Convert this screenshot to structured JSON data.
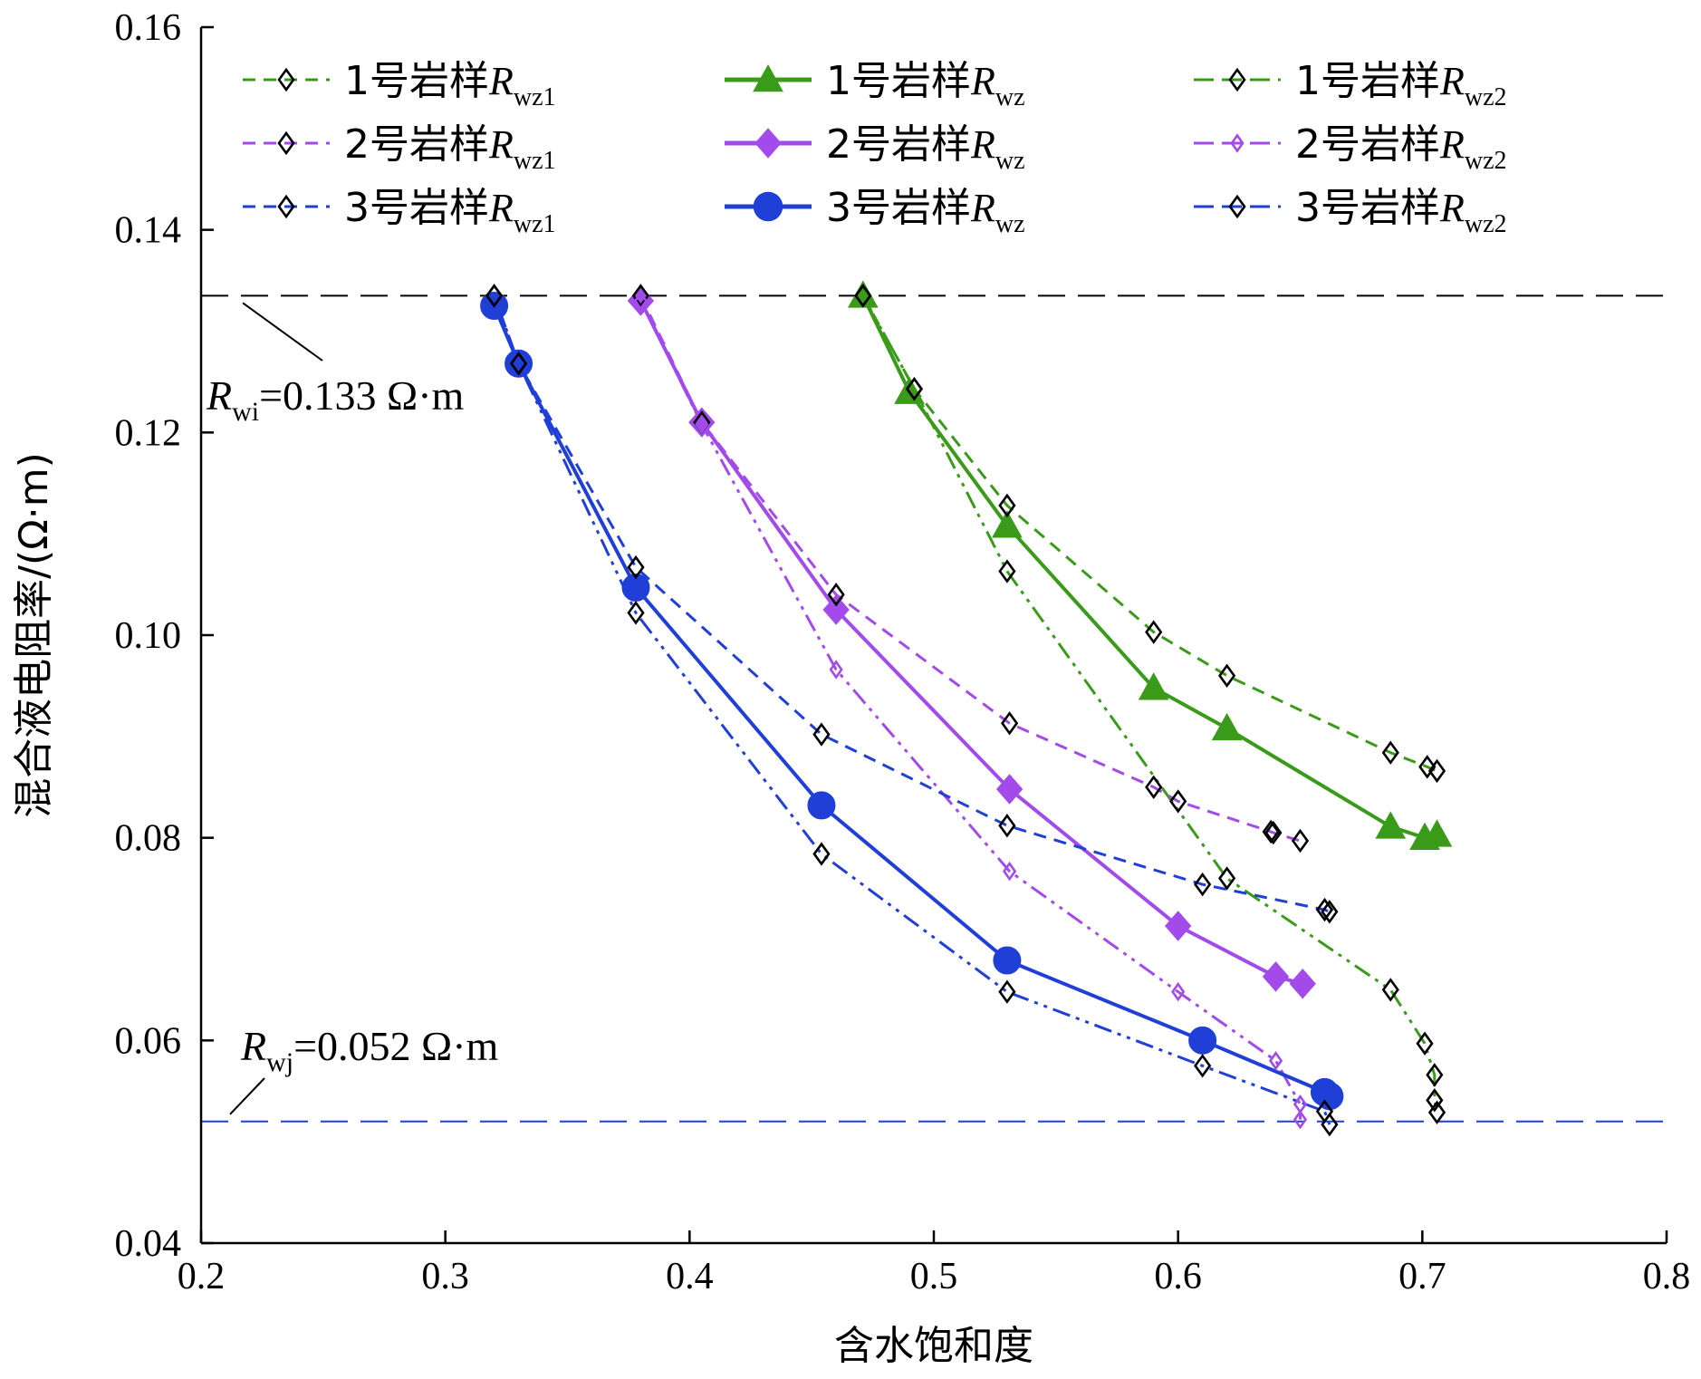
{
  "chart_data": {
    "type": "line",
    "xlabel": "含水饱和度",
    "ylabel": "混合液电阻率/(Ω·m)",
    "xlim": [
      0.2,
      0.8
    ],
    "ylim": [
      0.04,
      0.16
    ],
    "xticks": [
      "0.2",
      "0.3",
      "0.4",
      "0.5",
      "0.6",
      "0.7",
      "0.8"
    ],
    "yticks": [
      "0.04",
      "0.06",
      "0.08",
      "0.10",
      "0.12",
      "0.14",
      "0.16"
    ],
    "xtick_values": [
      0.2,
      0.3,
      0.4,
      0.5,
      0.6,
      0.7,
      0.8
    ],
    "ytick_values": [
      0.04,
      0.06,
      0.08,
      0.1,
      0.12,
      0.14,
      0.16
    ],
    "grid": false,
    "legend_position": "top",
    "reference_lines": [
      {
        "y": 0.1335,
        "color": "#000000",
        "label_main": "R",
        "label_sub": "wi",
        "label_value": "=0.133 Ω·m"
      },
      {
        "y": 0.052,
        "color": "#1f3fd6",
        "label_main": "R",
        "label_sub": "wj",
        "label_value": "=0.052 Ω·m"
      }
    ],
    "series": [
      {
        "name": "1号岩样Rwz1",
        "legend_main": "1号岩样R",
        "legend_sub": "wz1",
        "color": "#3a9a1a",
        "style": "dash",
        "marker": "diamond-open",
        "x": [
          0.471,
          0.492,
          0.53,
          0.59,
          0.62,
          0.687,
          0.702,
          0.706
        ],
        "y": [
          0.1335,
          0.1243,
          0.1128,
          0.1003,
          0.096,
          0.0884,
          0.087,
          0.0866
        ]
      },
      {
        "name": "1号岩样Rwz",
        "legend_main": "1号岩样R",
        "legend_sub": "wz",
        "color": "#3a9a1a",
        "style": "solid",
        "marker": "triangle",
        "x": [
          0.471,
          0.49,
          0.53,
          0.59,
          0.62,
          0.687,
          0.701,
          0.706
        ],
        "y": [
          0.1335,
          0.124,
          0.1108,
          0.0948,
          0.0908,
          0.0811,
          0.08,
          0.0803
        ]
      },
      {
        "name": "1号岩样Rwz2",
        "legend_main": "1号岩样R",
        "legend_sub": "wz2",
        "color": "#3a9a1a",
        "style": "dashdot",
        "marker": "diamond-open",
        "x": [
          0.471,
          0.492,
          0.53,
          0.62,
          0.687,
          0.701,
          0.705,
          0.705,
          0.706
        ],
        "y": [
          0.1335,
          0.1243,
          0.1063,
          0.076,
          0.065,
          0.0597,
          0.0566,
          0.0541,
          0.0529
        ]
      },
      {
        "name": "2号岩样Rwz1",
        "legend_main": "2号岩样R",
        "legend_sub": "wz1",
        "color": "#a24bea",
        "style": "dash",
        "marker": "diamond-open",
        "x": [
          0.38,
          0.405,
          0.46,
          0.531,
          0.59,
          0.6,
          0.638,
          0.639,
          0.65
        ],
        "y": [
          0.1335,
          0.121,
          0.104,
          0.0913,
          0.085,
          0.0836,
          0.0806,
          0.0805,
          0.0797
        ]
      },
      {
        "name": "2号岩样Rwz",
        "legend_main": "2号岩样R",
        "legend_sub": "wz",
        "color": "#a24bea",
        "style": "solid",
        "marker": "diamond-filled",
        "x": [
          0.38,
          0.405,
          0.46,
          0.531,
          0.6,
          0.64,
          0.651
        ],
        "y": [
          0.133,
          0.121,
          0.1025,
          0.0848,
          0.0713,
          0.0663,
          0.0656
        ]
      },
      {
        "name": "2号岩样Rwz2",
        "legend_main": "2号岩样R",
        "legend_sub": "wz2",
        "color": "#a24bea",
        "style": "dashdot",
        "marker": "diamond-small",
        "x": [
          0.38,
          0.405,
          0.46,
          0.531,
          0.6,
          0.64,
          0.65,
          0.65
        ],
        "y": [
          0.133,
          0.1208,
          0.0966,
          0.0767,
          0.0648,
          0.058,
          0.0537,
          0.0522
        ]
      },
      {
        "name": "3号岩样Rwz1",
        "legend_main": "3号岩样R",
        "legend_sub": "wz1",
        "color": "#1f3fd6",
        "style": "dash",
        "marker": "diamond-open",
        "x": [
          0.32,
          0.33,
          0.378,
          0.454,
          0.53,
          0.61,
          0.66,
          0.662
        ],
        "y": [
          0.1335,
          0.1268,
          0.1067,
          0.0902,
          0.0812,
          0.0754,
          0.0729,
          0.0727
        ]
      },
      {
        "name": "3号岩样Rwz",
        "legend_main": "3号岩样R",
        "legend_sub": "wz",
        "color": "#1f3fd6",
        "style": "solid",
        "marker": "circle",
        "x": [
          0.32,
          0.33,
          0.378,
          0.454,
          0.53,
          0.61,
          0.66,
          0.662
        ],
        "y": [
          0.1325,
          0.1268,
          0.1047,
          0.0832,
          0.0679,
          0.06,
          0.0549,
          0.0545
        ]
      },
      {
        "name": "3号岩样Rwz2",
        "legend_main": "3号岩样R",
        "legend_sub": "wz2",
        "color": "#1f3fd6",
        "style": "dashdot",
        "marker": "diamond-open",
        "x": [
          0.32,
          0.33,
          0.378,
          0.454,
          0.53,
          0.61,
          0.66,
          0.662
        ],
        "y": [
          0.1335,
          0.1268,
          0.1022,
          0.0784,
          0.0648,
          0.0575,
          0.053,
          0.0517
        ]
      }
    ]
  }
}
